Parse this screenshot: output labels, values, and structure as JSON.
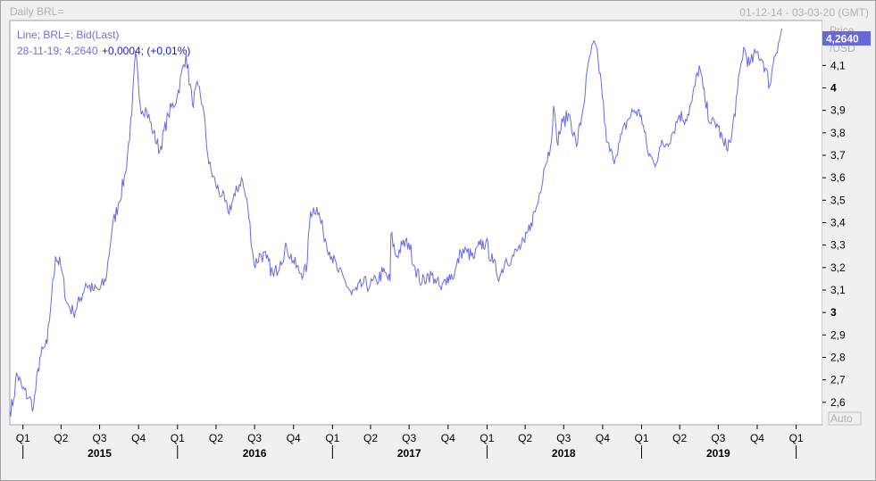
{
  "window": {
    "title": "Daily BRL=",
    "date_range": "01-12-14 - 03-03-20 (GMT)"
  },
  "legend": {
    "line1": "Line; BRL=; Bid(Last)",
    "line2_prefix": "28-11-19; 4,2640",
    "line2_change": "+0,0004; (+0,01%)"
  },
  "price_axis": {
    "title": "Price",
    "unit": "/USD",
    "last_value_label": "4,2640",
    "auto_label": "Auto"
  },
  "colors": {
    "series": "#6a6ae0",
    "last_value_bg": "#6666dd",
    "plot_bg": "#ffffff",
    "panel_bg": "#f0f0f0"
  },
  "chart_data": {
    "type": "line",
    "title": "",
    "xlabel": "",
    "ylabel": "Price /USD",
    "series": [
      {
        "name": "BRL=",
        "points": [
          [
            "2014-12-01",
            2.56
          ],
          [
            "2014-12-10",
            2.61
          ],
          [
            "2014-12-17",
            2.73
          ],
          [
            "2014-12-31",
            2.66
          ],
          [
            "2015-01-15",
            2.62
          ],
          [
            "2015-01-26",
            2.58
          ],
          [
            "2015-02-10",
            2.8
          ],
          [
            "2015-02-27",
            2.86
          ],
          [
            "2015-03-10",
            3.08
          ],
          [
            "2015-03-19",
            3.25
          ],
          [
            "2015-03-31",
            3.21
          ],
          [
            "2015-04-15",
            3.04
          ],
          [
            "2015-04-30",
            3.0
          ],
          [
            "2015-05-15",
            3.05
          ],
          [
            "2015-05-29",
            3.13
          ],
          [
            "2015-06-15",
            3.1
          ],
          [
            "2015-06-30",
            3.1
          ],
          [
            "2015-07-15",
            3.14
          ],
          [
            "2015-07-31",
            3.38
          ],
          [
            "2015-08-14",
            3.48
          ],
          [
            "2015-08-31",
            3.62
          ],
          [
            "2015-09-15",
            3.88
          ],
          [
            "2015-09-24",
            4.16
          ],
          [
            "2015-10-05",
            3.92
          ],
          [
            "2015-10-20",
            3.9
          ],
          [
            "2015-11-05",
            3.8
          ],
          [
            "2015-11-20",
            3.72
          ],
          [
            "2015-12-10",
            3.88
          ],
          [
            "2015-12-31",
            3.96
          ],
          [
            "2016-01-21",
            4.15
          ],
          [
            "2016-02-05",
            3.93
          ],
          [
            "2016-02-19",
            4.01
          ],
          [
            "2016-03-01",
            3.92
          ],
          [
            "2016-03-15",
            3.66
          ],
          [
            "2016-03-31",
            3.57
          ],
          [
            "2016-04-15",
            3.52
          ],
          [
            "2016-04-29",
            3.45
          ],
          [
            "2016-05-16",
            3.52
          ],
          [
            "2016-05-31",
            3.6
          ],
          [
            "2016-06-15",
            3.47
          ],
          [
            "2016-06-30",
            3.21
          ],
          [
            "2016-07-15",
            3.26
          ],
          [
            "2016-07-29",
            3.24
          ],
          [
            "2016-08-15",
            3.16
          ],
          [
            "2016-08-31",
            3.23
          ],
          [
            "2016-09-15",
            3.29
          ],
          [
            "2016-09-30",
            3.23
          ],
          [
            "2016-10-14",
            3.18
          ],
          [
            "2016-10-31",
            3.18
          ],
          [
            "2016-11-10",
            3.45
          ],
          [
            "2016-11-25",
            3.47
          ],
          [
            "2016-12-10",
            3.36
          ],
          [
            "2016-12-30",
            3.25
          ],
          [
            "2017-01-15",
            3.18
          ],
          [
            "2017-01-31",
            3.14
          ],
          [
            "2017-02-15",
            3.08
          ],
          [
            "2017-02-28",
            3.1
          ],
          [
            "2017-03-15",
            3.13
          ],
          [
            "2017-03-31",
            3.12
          ],
          [
            "2017-04-15",
            3.14
          ],
          [
            "2017-04-30",
            3.18
          ],
          [
            "2017-05-17",
            3.14
          ],
          [
            "2017-05-19",
            3.35
          ],
          [
            "2017-05-31",
            3.25
          ],
          [
            "2017-06-15",
            3.3
          ],
          [
            "2017-06-30",
            3.31
          ],
          [
            "2017-07-15",
            3.2
          ],
          [
            "2017-07-31",
            3.13
          ],
          [
            "2017-08-15",
            3.17
          ],
          [
            "2017-08-31",
            3.15
          ],
          [
            "2017-09-15",
            3.1
          ],
          [
            "2017-09-29",
            3.16
          ],
          [
            "2017-10-16",
            3.17
          ],
          [
            "2017-10-31",
            3.27
          ],
          [
            "2017-11-15",
            3.27
          ],
          [
            "2017-11-30",
            3.24
          ],
          [
            "2017-12-15",
            3.3
          ],
          [
            "2017-12-29",
            3.31
          ],
          [
            "2018-01-15",
            3.22
          ],
          [
            "2018-01-31",
            3.16
          ],
          [
            "2018-02-15",
            3.24
          ],
          [
            "2018-02-28",
            3.24
          ],
          [
            "2018-03-15",
            3.28
          ],
          [
            "2018-03-31",
            3.31
          ],
          [
            "2018-04-15",
            3.4
          ],
          [
            "2018-04-30",
            3.48
          ],
          [
            "2018-05-15",
            3.64
          ],
          [
            "2018-05-31",
            3.74
          ],
          [
            "2018-06-07",
            3.92
          ],
          [
            "2018-06-15",
            3.76
          ],
          [
            "2018-06-29",
            3.85
          ],
          [
            "2018-07-15",
            3.88
          ],
          [
            "2018-07-31",
            3.74
          ],
          [
            "2018-08-15",
            3.9
          ],
          [
            "2018-08-31",
            4.14
          ],
          [
            "2018-09-13",
            4.2
          ],
          [
            "2018-09-28",
            4.02
          ],
          [
            "2018-10-10",
            3.76
          ],
          [
            "2018-10-26",
            3.68
          ],
          [
            "2018-11-10",
            3.76
          ],
          [
            "2018-11-30",
            3.86
          ],
          [
            "2018-12-14",
            3.9
          ],
          [
            "2018-12-31",
            3.88
          ],
          [
            "2019-01-15",
            3.72
          ],
          [
            "2019-01-31",
            3.66
          ],
          [
            "2019-02-15",
            3.74
          ],
          [
            "2019-02-28",
            3.75
          ],
          [
            "2019-03-15",
            3.8
          ],
          [
            "2019-03-31",
            3.88
          ],
          [
            "2019-04-15",
            3.86
          ],
          [
            "2019-04-30",
            3.94
          ],
          [
            "2019-05-17",
            4.1
          ],
          [
            "2019-05-31",
            3.94
          ],
          [
            "2019-06-14",
            3.84
          ],
          [
            "2019-06-28",
            3.84
          ],
          [
            "2019-07-15",
            3.74
          ],
          [
            "2019-07-31",
            3.76
          ],
          [
            "2019-08-15",
            3.98
          ],
          [
            "2019-08-30",
            4.18
          ],
          [
            "2019-09-13",
            4.1
          ],
          [
            "2019-09-30",
            4.16
          ],
          [
            "2019-10-15",
            4.12
          ],
          [
            "2019-10-31",
            4.01
          ],
          [
            "2019-11-10",
            4.14
          ],
          [
            "2019-11-20",
            4.2
          ],
          [
            "2019-11-28",
            4.264
          ]
        ]
      }
    ],
    "x_range": [
      "2014-12-01",
      "2020-03-03"
    ],
    "ylim": [
      2.5,
      4.3
    ],
    "y_ticks": [
      {
        "value": 2.6,
        "label": "2,6",
        "bold": false
      },
      {
        "value": 2.7,
        "label": "2,7",
        "bold": false
      },
      {
        "value": 2.8,
        "label": "2,8",
        "bold": false
      },
      {
        "value": 2.9,
        "label": "2,9",
        "bold": false
      },
      {
        "value": 3.0,
        "label": "3",
        "bold": true
      },
      {
        "value": 3.1,
        "label": "3,1",
        "bold": false
      },
      {
        "value": 3.2,
        "label": "3,2",
        "bold": false
      },
      {
        "value": 3.3,
        "label": "3,3",
        "bold": false
      },
      {
        "value": 3.4,
        "label": "3,4",
        "bold": false
      },
      {
        "value": 3.5,
        "label": "3,5",
        "bold": false
      },
      {
        "value": 3.6,
        "label": "3,6",
        "bold": false
      },
      {
        "value": 3.7,
        "label": "3,7",
        "bold": false
      },
      {
        "value": 3.8,
        "label": "3,8",
        "bold": false
      },
      {
        "value": 3.9,
        "label": "3,9",
        "bold": false
      },
      {
        "value": 4.0,
        "label": "4",
        "bold": true
      },
      {
        "value": 4.1,
        "label": "4,1",
        "bold": false
      }
    ],
    "quarter_ticks": [
      {
        "date": "2015-01-01",
        "label": "Q1"
      },
      {
        "date": "2015-04-01",
        "label": "Q2"
      },
      {
        "date": "2015-07-01",
        "label": "Q3"
      },
      {
        "date": "2015-10-01",
        "label": "Q4"
      },
      {
        "date": "2016-01-01",
        "label": "Q1"
      },
      {
        "date": "2016-04-01",
        "label": "Q2"
      },
      {
        "date": "2016-07-01",
        "label": "Q3"
      },
      {
        "date": "2016-10-01",
        "label": "Q4"
      },
      {
        "date": "2017-01-01",
        "label": "Q1"
      },
      {
        "date": "2017-04-01",
        "label": "Q2"
      },
      {
        "date": "2017-07-01",
        "label": "Q3"
      },
      {
        "date": "2017-10-01",
        "label": "Q4"
      },
      {
        "date": "2018-01-01",
        "label": "Q1"
      },
      {
        "date": "2018-04-01",
        "label": "Q2"
      },
      {
        "date": "2018-07-01",
        "label": "Q3"
      },
      {
        "date": "2018-10-01",
        "label": "Q4"
      },
      {
        "date": "2019-01-01",
        "label": "Q1"
      },
      {
        "date": "2019-04-01",
        "label": "Q2"
      },
      {
        "date": "2019-07-01",
        "label": "Q3"
      },
      {
        "date": "2019-10-01",
        "label": "Q4"
      },
      {
        "date": "2020-01-01",
        "label": "Q1"
      }
    ],
    "year_labels": [
      {
        "date": "2015-07-01",
        "label": "2015"
      },
      {
        "date": "2016-07-01",
        "label": "2016"
      },
      {
        "date": "2017-07-01",
        "label": "2017"
      },
      {
        "date": "2018-07-01",
        "label": "2018"
      },
      {
        "date": "2019-07-01",
        "label": "2019"
      }
    ],
    "year_dividers": [
      "2015-01-01",
      "2016-01-01",
      "2017-01-01",
      "2018-01-01",
      "2019-01-01",
      "2020-01-01"
    ],
    "grid": false,
    "legend_position": "top-left"
  }
}
